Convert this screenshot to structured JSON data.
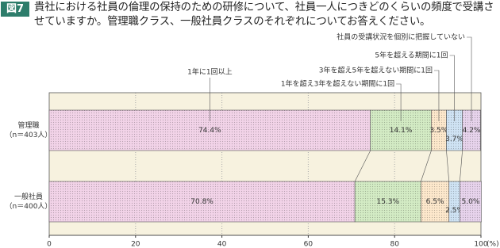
{
  "chart_data": {
    "type": "stacked-hbar",
    "figure_label": "図7",
    "title": "貴社における社員の倫理の保持のための研修について、社員一人につきどのくらいの頻度で受講させていますか。管理職クラス、一般社員クラスのそれぞれについてお答えください。",
    "categories": [
      "管理職",
      "一般社員"
    ],
    "category_notes": [
      "（n＝403人）",
      "（n＝400人）"
    ],
    "series": [
      {
        "name": "1年に1回以上",
        "color": "#f2d3e8",
        "values": [
          74.4,
          70.8
        ],
        "value_labels": [
          "74.4%",
          "70.8%"
        ]
      },
      {
        "name": "1年を超え3年を超えない期間に1回",
        "color": "#d3ebc4",
        "values": [
          14.1,
          15.3
        ],
        "value_labels": [
          "14.1%",
          "15.3%"
        ]
      },
      {
        "name": "3年を超え5年を超えない期間に1回",
        "color": "#fde8cc",
        "values": [
          3.5,
          6.5
        ],
        "value_labels": [
          "3.5%",
          "6.5%"
        ]
      },
      {
        "name": "5年を超える期間に1回",
        "color": "#cfe3f4",
        "values": [
          3.7,
          2.5
        ],
        "value_labels": [
          "3.7%",
          "2.5%"
        ]
      },
      {
        "name": "社員の受講状況を個別に把握していない",
        "color": "#e7d3ec",
        "values": [
          4.2,
          5
        ],
        "value_labels": [
          "4.2%",
          "5.0%"
        ]
      }
    ],
    "xlim": [
      0,
      100
    ],
    "xticks": [
      0,
      20,
      40,
      60,
      80,
      100
    ],
    "xlabel": "(%)",
    "grid": true
  }
}
